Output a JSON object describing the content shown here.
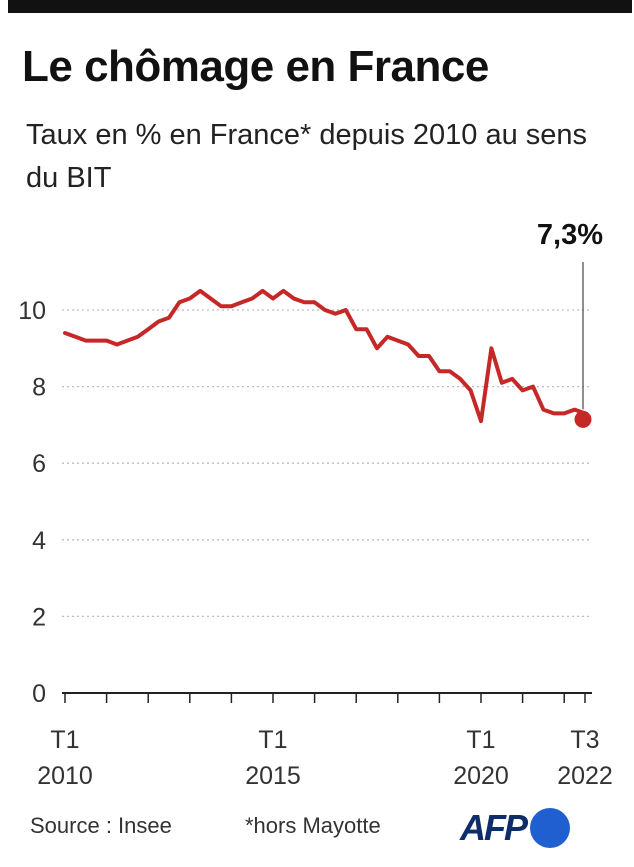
{
  "header": {
    "title": "Le chômage en France",
    "subtitle": "Taux en % en France* depuis 2010 au sens du BIT"
  },
  "footer": {
    "source": "Source : Insee",
    "note": "*hors Mayotte",
    "logo": "AFP"
  },
  "colors": {
    "line": "#c62828",
    "grid": "#bdbdbd",
    "axis": "#222222"
  },
  "chart_data": {
    "type": "line",
    "title": "Le chômage en France",
    "subtitle": "Taux en % en France* depuis 2010 au sens du BIT",
    "xlabel": "",
    "ylabel": "",
    "ylim": [
      0,
      10
    ],
    "yticks": [
      0,
      2,
      4,
      6,
      8,
      10
    ],
    "grid": true,
    "grid_style": "dotted",
    "legend": "none",
    "x_tick_labels": [
      {
        "label": "T1 2010",
        "value": 2010.0
      },
      {
        "label": "T1 2015",
        "value": 2015.0
      },
      {
        "label": "T1 2020",
        "value": 2020.0
      },
      {
        "label": "T3 2022",
        "value": 2022.5
      }
    ],
    "last_value_label": "7,3%",
    "series": [
      {
        "color": "#c62828",
        "x": [
          2010.0,
          2010.25,
          2010.5,
          2010.75,
          2011.0,
          2011.25,
          2011.5,
          2011.75,
          2012.0,
          2012.25,
          2012.5,
          2012.75,
          2013.0,
          2013.25,
          2013.5,
          2013.75,
          2014.0,
          2014.25,
          2014.5,
          2014.75,
          2015.0,
          2015.25,
          2015.5,
          2015.75,
          2016.0,
          2016.25,
          2016.5,
          2016.75,
          2017.0,
          2017.25,
          2017.5,
          2017.75,
          2018.0,
          2018.25,
          2018.5,
          2018.75,
          2019.0,
          2019.25,
          2019.5,
          2019.75,
          2020.0,
          2020.25,
          2020.5,
          2020.75,
          2021.0,
          2021.25,
          2021.5,
          2021.75,
          2022.0,
          2022.25,
          2022.5
        ],
        "values": [
          9.4,
          9.3,
          9.2,
          9.2,
          9.2,
          9.1,
          9.2,
          9.3,
          9.5,
          9.7,
          9.8,
          10.2,
          10.3,
          10.5,
          10.3,
          10.1,
          10.1,
          10.2,
          10.3,
          10.5,
          10.3,
          10.5,
          10.3,
          10.2,
          10.2,
          10.0,
          9.9,
          10.0,
          9.5,
          9.5,
          9.0,
          9.3,
          9.2,
          9.1,
          8.8,
          8.8,
          8.4,
          8.4,
          8.2,
          7.9,
          7.1,
          9.0,
          8.1,
          8.2,
          7.9,
          8.0,
          7.4,
          7.3,
          7.3,
          7.4,
          7.3
        ]
      }
    ]
  }
}
